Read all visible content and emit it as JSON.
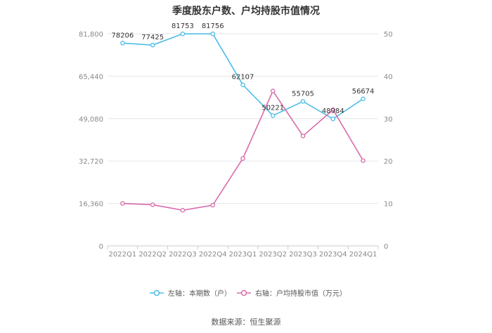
{
  "title": "季度股东户数、户均持股市值情况",
  "source": "数据来源：恒生聚源",
  "chart_data": {
    "type": "line",
    "categories": [
      "2022Q1",
      "2022Q2",
      "2022Q3",
      "2022Q4",
      "2023Q1",
      "2023Q2",
      "2023Q3",
      "2023Q4",
      "2024Q1"
    ],
    "left_axis": {
      "ticks": [
        "0",
        "16,360",
        "32,720",
        "49,080",
        "65,440",
        "81,800"
      ],
      "ylim": [
        0,
        81800
      ]
    },
    "right_axis": {
      "ticks": [
        "0",
        "10",
        "20",
        "30",
        "40",
        "50"
      ],
      "ylim": [
        0,
        50
      ]
    },
    "series": [
      {
        "name": "左轴：本期数（户）",
        "axis": "left",
        "color": "#4dbde8",
        "values": [
          78206,
          77425,
          81753,
          81756,
          62107,
          50221,
          55705,
          48984,
          56674
        ],
        "labels": [
          "78206",
          "77425",
          "81753",
          "81756",
          "62107",
          "50221",
          "55705",
          "48984",
          "56674"
        ]
      },
      {
        "name": "右轴：户均持股市值（万元）",
        "axis": "right",
        "color": "#d96bab",
        "values": [
          10.0,
          9.7,
          8.4,
          9.6,
          20.6,
          36.5,
          25.9,
          32.1,
          20.1
        ]
      }
    ],
    "grid": true,
    "legend_position": "bottom"
  }
}
